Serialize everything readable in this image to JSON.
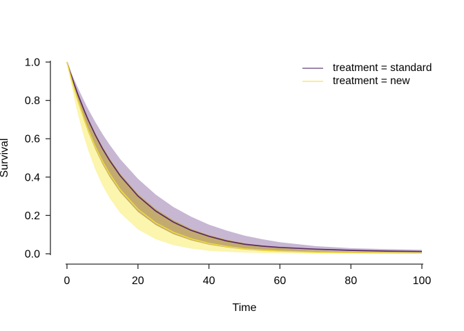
{
  "chart_data": {
    "type": "line",
    "title": "",
    "xlabel": "Time",
    "ylabel": "Survival",
    "xlim": [
      0,
      100
    ],
    "ylim": [
      0.0,
      1.0
    ],
    "grid": false,
    "xticks": [
      "0",
      "20",
      "40",
      "60",
      "80",
      "100"
    ],
    "xtick_values": [
      0,
      20,
      40,
      60,
      80,
      100
    ],
    "yticks": [
      "0.0",
      "0.2",
      "0.4",
      "0.6",
      "0.8",
      "1.0"
    ],
    "ytick_values": [
      0.0,
      0.2,
      0.4,
      0.6,
      0.8,
      1.0
    ],
    "x": [
      0,
      1,
      2,
      3,
      4,
      5,
      6,
      8,
      10,
      12,
      15,
      20,
      25,
      30,
      35,
      40,
      45,
      50,
      55,
      60,
      70,
      80,
      90,
      100
    ],
    "series": [
      {
        "name": "treatment = standard",
        "role": "estimate",
        "values": [
          1,
          0.942,
          0.887,
          0.835,
          0.787,
          0.741,
          0.698,
          0.619,
          0.549,
          0.487,
          0.407,
          0.301,
          0.223,
          0.165,
          0.122,
          0.091,
          0.067,
          0.05,
          0.04,
          0.033,
          0.024,
          0.018,
          0.014,
          0.012
        ]
      },
      {
        "name": "treatment = standard",
        "role": "upper_ci",
        "values": [
          1,
          0.954,
          0.91,
          0.869,
          0.829,
          0.791,
          0.754,
          0.687,
          0.625,
          0.569,
          0.494,
          0.391,
          0.309,
          0.244,
          0.193,
          0.152,
          0.121,
          0.095,
          0.076,
          0.06,
          0.04,
          0.029,
          0.024,
          0.021
        ]
      },
      {
        "name": "treatment = standard",
        "role": "lower_ci",
        "values": [
          1,
          0.927,
          0.859,
          0.796,
          0.738,
          0.684,
          0.634,
          0.545,
          0.468,
          0.402,
          0.32,
          0.219,
          0.15,
          0.102,
          0.07,
          0.048,
          0.033,
          0.022,
          0.015,
          0.011,
          0.006,
          0.004,
          0.003,
          0.002
        ]
      },
      {
        "name": "treatment = new",
        "role": "estimate",
        "values": [
          1,
          0.93,
          0.864,
          0.803,
          0.747,
          0.694,
          0.645,
          0.558,
          0.482,
          0.417,
          0.334,
          0.232,
          0.161,
          0.112,
          0.078,
          0.054,
          0.038,
          0.026,
          0.019,
          0.014,
          0.008,
          0.006,
          0.005,
          0.004
        ]
      },
      {
        "name": "treatment = new",
        "role": "upper_ci",
        "values": [
          1,
          0.944,
          0.89,
          0.84,
          0.793,
          0.748,
          0.706,
          0.629,
          0.56,
          0.499,
          0.419,
          0.313,
          0.235,
          0.176,
          0.131,
          0.098,
          0.074,
          0.055,
          0.041,
          0.031,
          0.018,
          0.012,
          0.009,
          0.007
        ]
      },
      {
        "name": "treatment = new",
        "role": "lower_ci",
        "values": [
          1,
          0.902,
          0.814,
          0.734,
          0.662,
          0.597,
          0.539,
          0.439,
          0.357,
          0.291,
          0.213,
          0.127,
          0.076,
          0.045,
          0.027,
          0.016,
          0.01,
          0.006,
          0.004,
          0.002,
          0.001,
          0.001,
          0.0,
          0.0
        ]
      }
    ],
    "legend": {
      "position": "top-right",
      "entries": [
        {
          "label": "treatment = standard",
          "line_color": "#9d88ab"
        },
        {
          "label": "treatment = new",
          "line_color": "#f8f090"
        }
      ]
    },
    "colors": {
      "band_standard": "#c7b7d3",
      "band_new": "#fbf5ae",
      "band_overlap": "#c3ab70",
      "line_standard": "#5b2a63",
      "line_new": "#ecd83f",
      "axis": "#2b2b2b",
      "tick_text": "#000000"
    }
  }
}
